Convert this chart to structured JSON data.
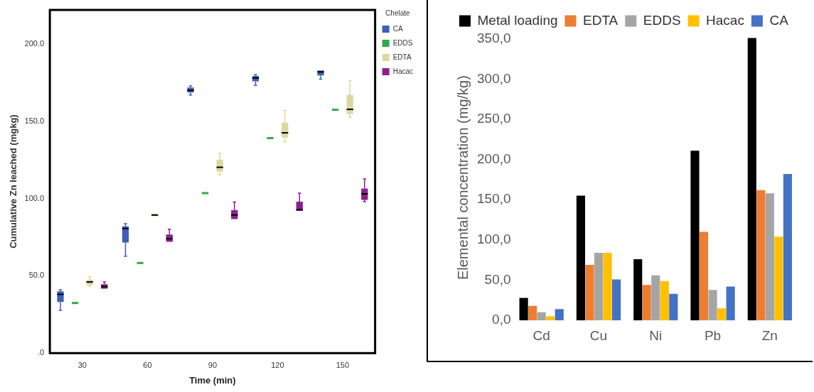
{
  "chart_data": [
    {
      "type": "box",
      "xlabel": "Time (min)",
      "ylabel": "Cumulative Zn leached (mgkg)",
      "legend_title": "Chelate",
      "legend": "right",
      "categories": [
        "30",
        "60",
        "90",
        "120",
        "150"
      ],
      "ylim": [
        0,
        222
      ],
      "yticks": [
        {
          "value": 0,
          "label": ".0"
        },
        {
          "value": 50,
          "label": "50.0"
        },
        {
          "value": 100,
          "label": "100.0"
        },
        {
          "value": 150,
          "label": "150.0"
        },
        {
          "value": 200,
          "label": "200.0"
        }
      ],
      "series": [
        {
          "name": "CA",
          "color": "#3d5fb5",
          "boxes": [
            {
              "low": 27.7,
              "q1": 33,
              "median": 38,
              "q3": 40,
              "high": 41
            },
            {
              "low": 62.7,
              "q1": 71.5,
              "median": 80.6,
              "q3": 82,
              "high": 83.7
            },
            {
              "low": 167,
              "q1": 168.6,
              "median": 170,
              "q3": 171.8,
              "high": 172.8
            },
            {
              "low": 173.2,
              "q1": 175.8,
              "median": 178,
              "q3": 179.3,
              "high": 180.2
            },
            {
              "low": 177.2,
              "q1": 179.6,
              "median": 181.9,
              "q3": 182.8,
              "high": 182.8
            }
          ]
        },
        {
          "name": "EDDS",
          "color": "#2fa84f",
          "boxes": [
            {
              "low": 32.4,
              "q1": 32.4,
              "median": 32.4,
              "q3": 32.4,
              "high": 32.4
            },
            {
              "low": 58.3,
              "q1": 58.3,
              "median": 58.3,
              "q3": 58.3,
              "high": 58.3
            },
            {
              "low": 103.5,
              "q1": 103.5,
              "median": 103.5,
              "q3": 103.5,
              "high": 103.5
            },
            {
              "low": 139.1,
              "q1": 139.1,
              "median": 139.1,
              "q3": 139.1,
              "high": 139.1
            },
            {
              "low": 157.4,
              "q1": 157.4,
              "median": 157.4,
              "q3": 157.4,
              "high": 157.4
            }
          ]
        },
        {
          "name": "EDTA",
          "color": "#ddd8a0",
          "boxes": [
            {
              "low": 43.3,
              "q1": 44,
              "median": 46,
              "q3": 47.5,
              "high": 49.5
            },
            {
              "low": 88.5,
              "q1": 88.5,
              "median": 89.3,
              "q3": 90.2,
              "high": 90.2
            },
            {
              "low": 115.3,
              "q1": 117.5,
              "median": 120.2,
              "q3": 124.9,
              "high": 129.3
            },
            {
              "low": 136.7,
              "q1": 139.5,
              "median": 142.5,
              "q3": 149.1,
              "high": 157
            },
            {
              "low": 152.6,
              "q1": 154.7,
              "median": 157.7,
              "q3": 167,
              "high": 176.3
            }
          ]
        },
        {
          "name": "Hacac",
          "color": "#8e1f8e",
          "boxes": [
            {
              "low": 41.7,
              "q1": 41.7,
              "median": 43,
              "q3": 44.5,
              "high": 46
            },
            {
              "low": 72,
              "q1": 72,
              "median": 74,
              "q3": 76.7,
              "high": 80.2
            },
            {
              "low": 86.7,
              "q1": 86.7,
              "median": 89.3,
              "q3": 92.5,
              "high": 97.7
            },
            {
              "low": 92,
              "q1": 92,
              "median": 92.8,
              "q3": 98,
              "high": 103.5
            },
            {
              "low": 98,
              "q1": 99.1,
              "median": 103,
              "q3": 106.5,
              "high": 112.6
            }
          ]
        }
      ]
    },
    {
      "type": "bar",
      "ylabel": "Elemental concentration (mg/kg)",
      "legend": "top",
      "categories": [
        "Cd",
        "Cu",
        "Ni",
        "Pb",
        "Zn"
      ],
      "ylim": [
        0,
        355
      ],
      "yticks": [
        {
          "value": 0,
          "label": "0,0"
        },
        {
          "value": 50,
          "label": "50,0"
        },
        {
          "value": 100,
          "label": "100,0"
        },
        {
          "value": 150,
          "label": "150,0"
        },
        {
          "value": 200,
          "label": "200,0"
        },
        {
          "value": 250,
          "label": "250,0"
        },
        {
          "value": 300,
          "label": "300,0"
        },
        {
          "value": 350,
          "label": "350,0"
        }
      ],
      "series": [
        {
          "name": "Metal loading",
          "color": "#000000",
          "values": [
            28,
            155,
            76,
            211,
            351
          ]
        },
        {
          "name": "EDTA",
          "color": "#ed7d31",
          "values": [
            18,
            69,
            44,
            110,
            162
          ]
        },
        {
          "name": "EDDS",
          "color": "#a5a5a5",
          "values": [
            10,
            84,
            56,
            38,
            158
          ]
        },
        {
          "name": "Hacac",
          "color": "#ffc000",
          "values": [
            5,
            84,
            49,
            15,
            104
          ]
        },
        {
          "name": "CA",
          "color": "#4472c4",
          "values": [
            14,
            51,
            33,
            42,
            182
          ]
        }
      ]
    }
  ]
}
